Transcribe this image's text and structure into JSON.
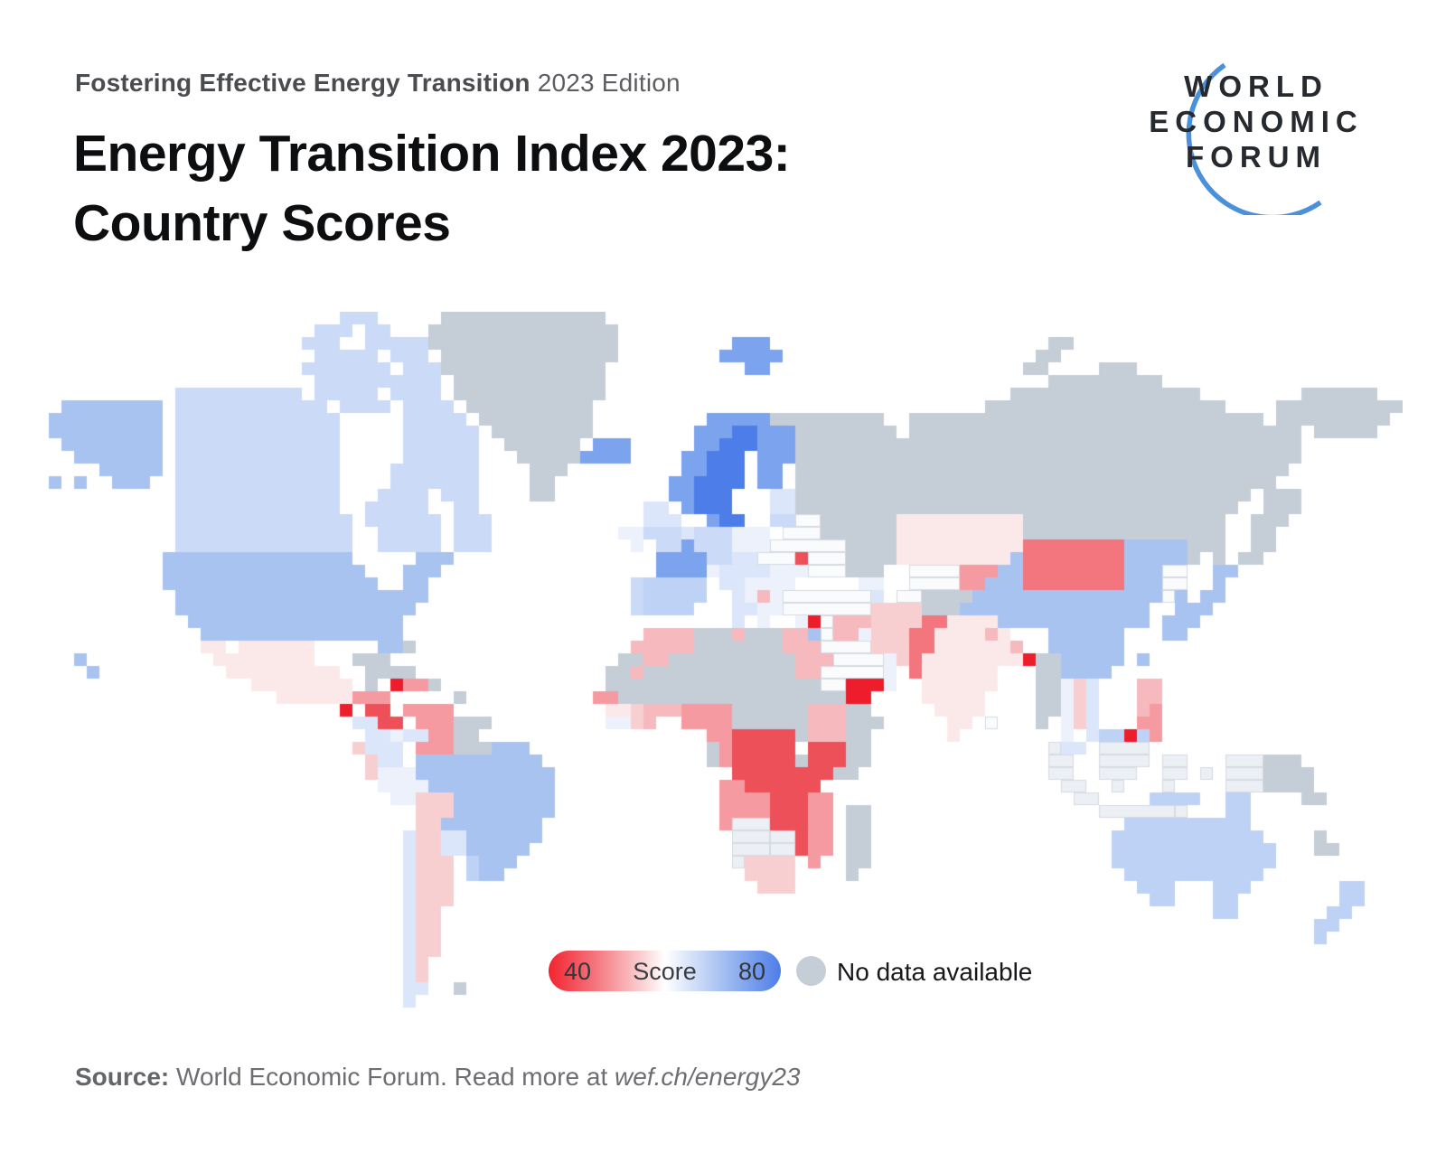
{
  "header": {
    "kicker_bold": "Fostering Effective Energy Transition",
    "kicker_light": " 2023 Edition",
    "title_line1": "Energy Transition Index 2023:",
    "title_line2": "Country Scores"
  },
  "logo": {
    "line1": "WORLD",
    "line2": "ECONOMIC",
    "line3": "FORUM",
    "arc_color": "#4a90da",
    "text_color": "#26292e"
  },
  "legend": {
    "min": "40",
    "label": "Score",
    "max": "80",
    "no_data_label": "No data available",
    "no_data_color": "#c5cdd7",
    "gradient_low_color": "#f2242f",
    "gradient_high_color": "#4d7de9"
  },
  "source": {
    "label": "Source:",
    "text": " World Economic Forum. Read more at ",
    "link": "wef.ch/energy23"
  },
  "chart_data": {
    "type": "choropleth_map",
    "title": "Energy Transition Index 2023: Country Scores",
    "scale": {
      "min": 40,
      "max": 80,
      "low_color": "#f2242f",
      "mid_color": "#ffffff",
      "high_color": "#4d7de9",
      "no_data_color": "#c5cdd7"
    },
    "notes": "Stylized tile world map; blue = high score (Scandinavia darkest blue, N.America/China/Brazil/Australia light blue), red = low score (Yemen/DR Congo/East Africa deep red, Mongolia/Pakistan salmon), gray = no data (Russia, Greenland, Sahara states, Venezuela's neighbours Guyana/Suriname, Madagascar, PNG).",
    "palette": {
      "G": "#c5cdd7",
      "B": "#4d7de9",
      "b": "#7ba3ee",
      "L": "#a9c3f1",
      "A": "#bed2f5",
      "C": "#cadaf7",
      "l": "#dce6fa",
      "w": "#ecf1fb",
      "I": "#eceff4",
      "W": "#fafbfc",
      "R": "#ee1d2b",
      "D": "#ee5059",
      "r": "#f3757d",
      "s": "#f59aa1",
      "p": "#f6b9bd",
      "q": "#f7cfd1",
      "m": "#fbe9ea"
    },
    "grid": {
      "cell": 14,
      "cols": 108,
      "rows": [
        "24,3,C;32,13,G",
        "22,3,C;26,2,C;31,15,G",
        "21,3,C;26,7,C;31,15,G;55,3,b;80,2,G",
        "22,5,C;28,3,C;32,14,G;54,5,b;79,2,G",
        "21,7,C;29,3,C;32,13,G;56,2,b;78,2,G;84,3,G",
        "22,10,C;33,12,G;80,9,G",
        "11,10,C;22,5,C;28,4,C;33,12,G;77,15,G;100,6,G",
        "2,8,L;11,12,C;24,4,C;29,4,C;34,10,G;75,19,G;98,10,G",
        "1,9,L;11,13,C;29,5,C;35,9,G;53,5,b;58,9,G;69,28,G;98,9,G",
        "1,9,L;11,13,C;29,6,C;36,8,G;52,3,b;55,2,B;57,3,b;60,8,G;69,31,G;101,5,G",
        "2,8,L;11,13,C;29,6,C;37,6,G;44,3,b;52,2,b;54,3,B;57,3,b;60,40,G",
        "3,7,L;11,13,C;29,6,C;38,5,G;43,4,b;51,2,b;53,3,B;57,3,b;60,40,G",
        "5,5,L;11,13,C;28,7,C;39,3,G;51,2,b;53,3,B;57,2,b;60,39,G",
        "1,1,L;3,1,L;6,3,L;11,13,C;28,7,C;39,2,G;50,2,b;52,4,B;57,2,b;60,38,G",
        "11,13,C;27,4,C;32,3,C;39,2,G;50,2,b;52,3,B;58,2,l;60,36,G;97,3,G",
        "11,13,C;26,5,C;33,2,C;48,2,l;51,1,b;52,3,B;58,2,l;60,35,G;97,3,G",
        "11,14,C;26,6,C;33,3,C;48,3,l;53,1,b;54,2,B;58,2,C;60,2,W;62,6,G;68,10,m;78,16,G;96,3,G",
        "11,14,C;27,5,C;33,3,C;46,2,w;48,3,C;51,1,l;52,3,C;55,3,w;59,3,W;62,6,G;68,10,m;78,16,G;96,2,G",
        "11,14,C;27,5,C;33,3,C;47,1,w;49,2,C;51,1,b;52,3,C;55,3,w;58,6,W;64,4,G;68,10,m;78,8,r;86,5,L;91,3,G;96,2,G",
        "10,15,L;30,3,L;49,4,b;53,2,C;55,2,l;57,3,W;60,1,D;61,3,W;64,4,G;68,9,m;77,1,L;78,8,r;86,5,L;91,1,G;93,1,G;95,2,G",
        "10,16,L;29,3,L;49,4,b;53,1,w;54,2,l;56,2,l;58,3,w;61,3,W;64,3,G;69,4,W;73,3,s;76,2,L;78,8,r;86,3,L;89,2,W;93,2,L",
        "10,17,L;29,2,L;47,1,C;48,5,A;54,2,l;56,3,w;59,1,w;65,2,w;69,4,W;73,2,s;75,3,L;78,8,r;86,3,L;89,2,W;93,1,L",
        "11,20,L;47,1,C;48,5,A;55,1,l;56,1,w;57,1,p;58,1,w;59,7,W;66,1,l;68,2,W;70,4,G;74,15,L;89,1,W;90,1,L;92,2,L",
        "11,19,L;47,1,C;48,4,A;55,2,l;57,2,w;59,7,W;66,4,q;70,3,G;73,15,L;90,1,L;91,2,L",
        "12,17,L;55,1,l;57,1,w;60,1,w;61,1,R;62,1,W;63,3,p;66,4,q;70,2,r;72,4,m;76,12,L;89,3,L",
        "13,16,L;48,4,p;52,3,G;55,1,p;56,3,G;59,2,p;61,1,L;62,1,W;63,2,p;65,1,w;66,3,q;69,2,r;71,4,m;75,1,p;76,1,m;80,6,L;89,2,L",
        "13,2,m;16,6,m;27,2,L;29,1,G;47,5,p;52,4,G;56,3,G;59,3,p;62,4,W;66,3,q;69,2,r;71,6,m;77,1,p;80,6,L",
        "3,1,L;14,8,m;25,3,G;46,2,G;48,2,p;50,6,G;56,4,G;60,3,p;63,4,W;67,1,w;68,1,q;69,1,r;70,7,m;77,1,m;78,1,R;79,2,G;81,5,L;87,1,L",
        "4,1,L;15,9,m;26,4,G;45,2,G;47,1,p;48,8,G;56,4,G;60,2,p;62,5,W;67,1,w;69,1,r;70,6,m;79,2,G;81,4,L",
        "17,8,m;26,1,G;28,1,R;29,2,s;31,1,G;45,3,G;48,4,G;52,4,G;56,3,G;59,3,G;62,2,W;64,3,R;67,1,w;70,6,m;79,2,G;81,1,w;82,1,q;83,1,l;87,2,p",
        "19,4,m;23,2,m;25,3,s;33,1,G;44,2,s;46,2,G;48,4,G;52,4,G;56,3,G;59,3,G;62,2,G;64,2,R;70,5,m;79,2,G;81,1,w;82,1,q;83,1,l;87,2,p",
        "24,1,R;26,2,D;29,4,s;45,2,m;47,1,q;48,2,p;50,1,p;51,4,s;55,3,G;58,3,G;61,3,p;64,2,G;71,4,m;79,2,G;81,1,w;82,1,q;83,1,l;87,1,p;88,1,s",
        "25,2,l;27,2,D;30,3,s;33,3,G;45,2,w;47,1,q;48,1,p;51,3,s;54,1,s;55,4,G;59,2,G;61,3,p;64,3,G;72,2,m;75,1,W;79,1,G;81,1,w;82,1,q;83,1,l;87,2,s",
        "26,2,l;28,1,w;29,2,l;31,2,s;33,2,G;53,2,s;55,5,D;60,1,G;61,3,p;64,2,G;72,1,m;81,1,w;83,1,l;84,2,A;86,1,R;87,1,A;88,1,s",
        "25,1,q;26,3,l;30,3,s;33,3,G;36,3,L;53,1,G;54,1,s;55,5,D;61,3,D;64,2,G;80,1,I;81,2,l;84,4,I",
        "26,1,q;27,2,l;30,10,L;53,1,G;54,1,s;55,5,D;60,1,G;61,3,D;64,2,G;80,2,I;84,4,I;89,2,I;94,3,I;97,3,G",
        "26,1,q;27,3,w;30,11,L;55,4,D;59,4,D;63,2,G;80,2,I;84,3,I;89,2,I;92,1,I;94,3,I;97,4,G",
        "27,4,w;31,10,L;54,2,s;56,3,D;59,3,D;81,2,I;85,1,I;89,1,I;94,3,I;97,4,G",
        "28,2,w;30,3,q;33,8,L;54,4,s;58,3,D;61,2,s;82,2,I;88,4,A;94,2,A;100,2,G",
        "30,3,q;33,8,L;54,4,s;58,3,D;61,2,s;64,2,G;84,6,I;90,1,I;94,2,A",
        "30,2,q;32,8,L;54,1,s;55,3,I;58,3,D;61,2,s;64,2,G;86,10,A",
        "29,1,l;30,2,q;32,2,l;34,6,L;55,3,I;58,2,I;60,1,D;61,2,s;64,2,G;85,12,A;101,1,G",
        "29,1,l;30,2,q;32,2,l;34,5,L;55,3,I;58,2,I;60,1,D;61,2,s;64,2,G;85,13,A;101,2,G",
        "29,1,l;30,3,q;34,1,A;35,3,L;55,1,I;56,4,q;61,1,s;64,2,G;85,13,A",
        "29,1,l;30,3,q;34,1,A;35,2,L;56,4,q;64,1,G;86,11,A",
        "29,1,l;30,3,q;57,3,q;87,3,A;93,3,A;103,2,A",
        "29,1,l;30,3,q;88,2,A;93,2,A;103,2,A",
        "29,1,l;30,2,q;93,2,A;102,2,A",
        "29,1,l;30,2,q;101,2,A",
        "29,1,l;30,2,q;101,1,A",
        "29,1,l;30,2,q",
        "29,1,l;30,1,q",
        "29,1,l;30,1,q",
        "29,2,l;33,1,G",
        "29,1,l"
      ]
    }
  }
}
